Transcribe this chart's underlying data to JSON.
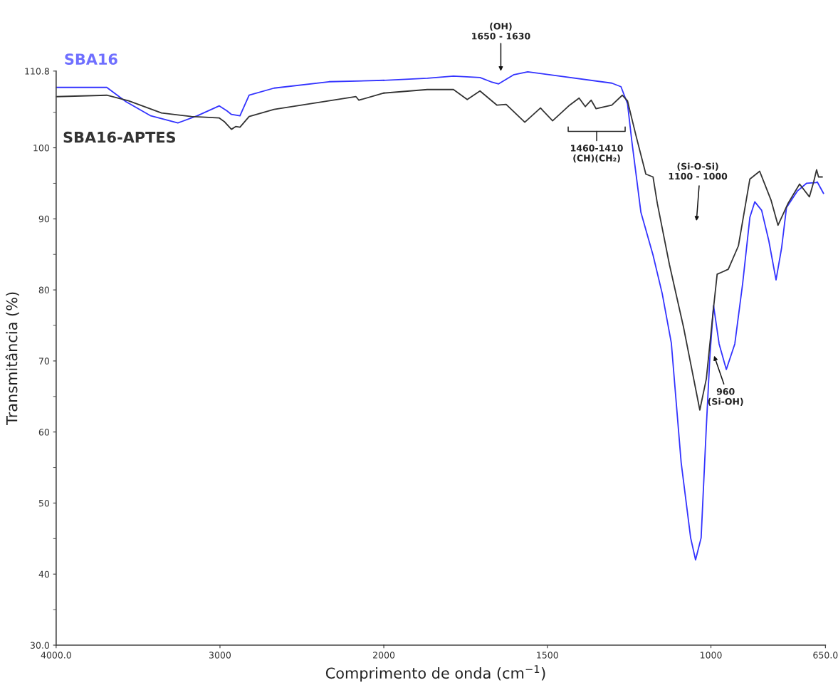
{
  "chart_data": [
    {
      "type": "line",
      "ylabel": "Transmitância (%)",
      "xlim": [
        4000,
        2000
      ],
      "xticks": [
        {
          "value": 4000,
          "label": "4000.0"
        },
        3000
      ],
      "ylim": [
        30,
        110.8
      ],
      "yticks": [
        {
          "value": 30,
          "label": "30.0"
        },
        {
          "value": 35,
          "label": null
        },
        40,
        {
          "value": 45,
          "label": null
        },
        50,
        {
          "value": 55,
          "label": null
        },
        60,
        {
          "value": 65,
          "label": null
        },
        70,
        {
          "value": 75,
          "label": null
        },
        80,
        {
          "value": 85,
          "label": null
        },
        90,
        {
          "value": 95,
          "label": null
        },
        100,
        {
          "value": 105,
          "label": null
        },
        110.8
      ],
      "legend": false,
      "marker": "none",
      "line_style": "solid",
      "series": [
        {
          "name": "SBA16",
          "color": "#3333ff",
          "x": [
            4000,
            3691,
            3574,
            3422,
            3257,
            3139,
            3004,
            2957,
            2930,
            2878,
            2822,
            2670,
            2335,
            2000
          ],
          "values": [
            108.5,
            108.5,
            106.5,
            104.5,
            103.5,
            104.5,
            105.9,
            105.2,
            104.7,
            104.5,
            107.4,
            108.4,
            109.3,
            109.5
          ]
        },
        {
          "name": "SBA16-APTES",
          "color": "#333333",
          "x": [
            4000,
            3691,
            3557,
            3357,
            3174,
            3004,
            2974,
            2930,
            2904,
            2878,
            2822,
            2670,
            2170,
            2152,
            2000
          ],
          "values": [
            107.2,
            107.4,
            106.6,
            104.9,
            104.4,
            104.2,
            103.7,
            102.6,
            103.0,
            102.9,
            104.4,
            105.4,
            107.2,
            106.7,
            107.7
          ]
        }
      ]
    },
    {
      "type": "line",
      "xlabel": "Comprimento de onda (cm$^{−1}$)",
      "xlim": [
        2000,
        650
      ],
      "xticks": [
        2000,
        1500,
        1000,
        {
          "value": 650,
          "label": "650.0"
        }
      ],
      "ylim": [
        30,
        110.8
      ],
      "tick_labels": "x",
      "legend": false,
      "marker": "none",
      "line_style": "solid",
      "series": [
        {
          "color": "#3333ff",
          "x": [
            2000,
            1867,
            1787,
            1706,
            1673,
            1649,
            1602,
            1560,
            1303,
            1275,
            1255,
            1242,
            1214,
            1177,
            1149,
            1121,
            1106,
            1091,
            1062,
            1047,
            1030,
            1014,
            1003,
            992,
            975,
            953,
            927,
            903,
            881,
            866,
            845,
            823,
            801,
            784,
            769,
            736,
            708,
            678,
            675,
            656
          ],
          "values": [
            109.5,
            109.8,
            110.1,
            109.9,
            109.3,
            109.0,
            110.3,
            110.7,
            109.1,
            108.6,
            106.2,
            101.0,
            90.9,
            84.9,
            79.5,
            72.5,
            64.1,
            55.7,
            45.1,
            42.0,
            45.1,
            60.8,
            70.8,
            77.8,
            72.4,
            68.8,
            72.4,
            80.9,
            90.2,
            92.4,
            91.2,
            86.9,
            81.4,
            85.9,
            91.6,
            93.9,
            95.0,
            95.1,
            95.2,
            93.6
          ]
        },
        {
          "color": "#333333",
          "x": [
            2000,
            1867,
            1787,
            1745,
            1706,
            1654,
            1626,
            1569,
            1521,
            1484,
            1432,
            1403,
            1384,
            1366,
            1351,
            1303,
            1271,
            1255,
            1229,
            1199,
            1177,
            1164,
            1127,
            1084,
            1034,
            1014,
            992,
            981,
            947,
            916,
            881,
            851,
            816,
            795,
            764,
            729,
            699,
            686,
            677,
            671,
            660
          ],
          "values": [
            107.7,
            108.2,
            108.2,
            106.8,
            108.0,
            106.0,
            106.1,
            103.6,
            105.6,
            103.8,
            106.0,
            107.0,
            105.8,
            106.7,
            105.5,
            106.0,
            107.4,
            106.6,
            101.7,
            96.3,
            95.9,
            92.2,
            83.6,
            74.8,
            63.1,
            67.5,
            77.5,
            82.2,
            82.9,
            86.2,
            95.6,
            96.7,
            92.6,
            89.1,
            92.2,
            94.9,
            93.1,
            95.2,
            96.9,
            95.9,
            95.9
          ]
        }
      ],
      "annotations": [
        "(OH)\n1650 - 1630",
        "1460-1410\n(CH)(CH₂)",
        "(Si-O-Si)\n1100 - 1000",
        "960\n(Si-OH)"
      ]
    }
  ]
}
